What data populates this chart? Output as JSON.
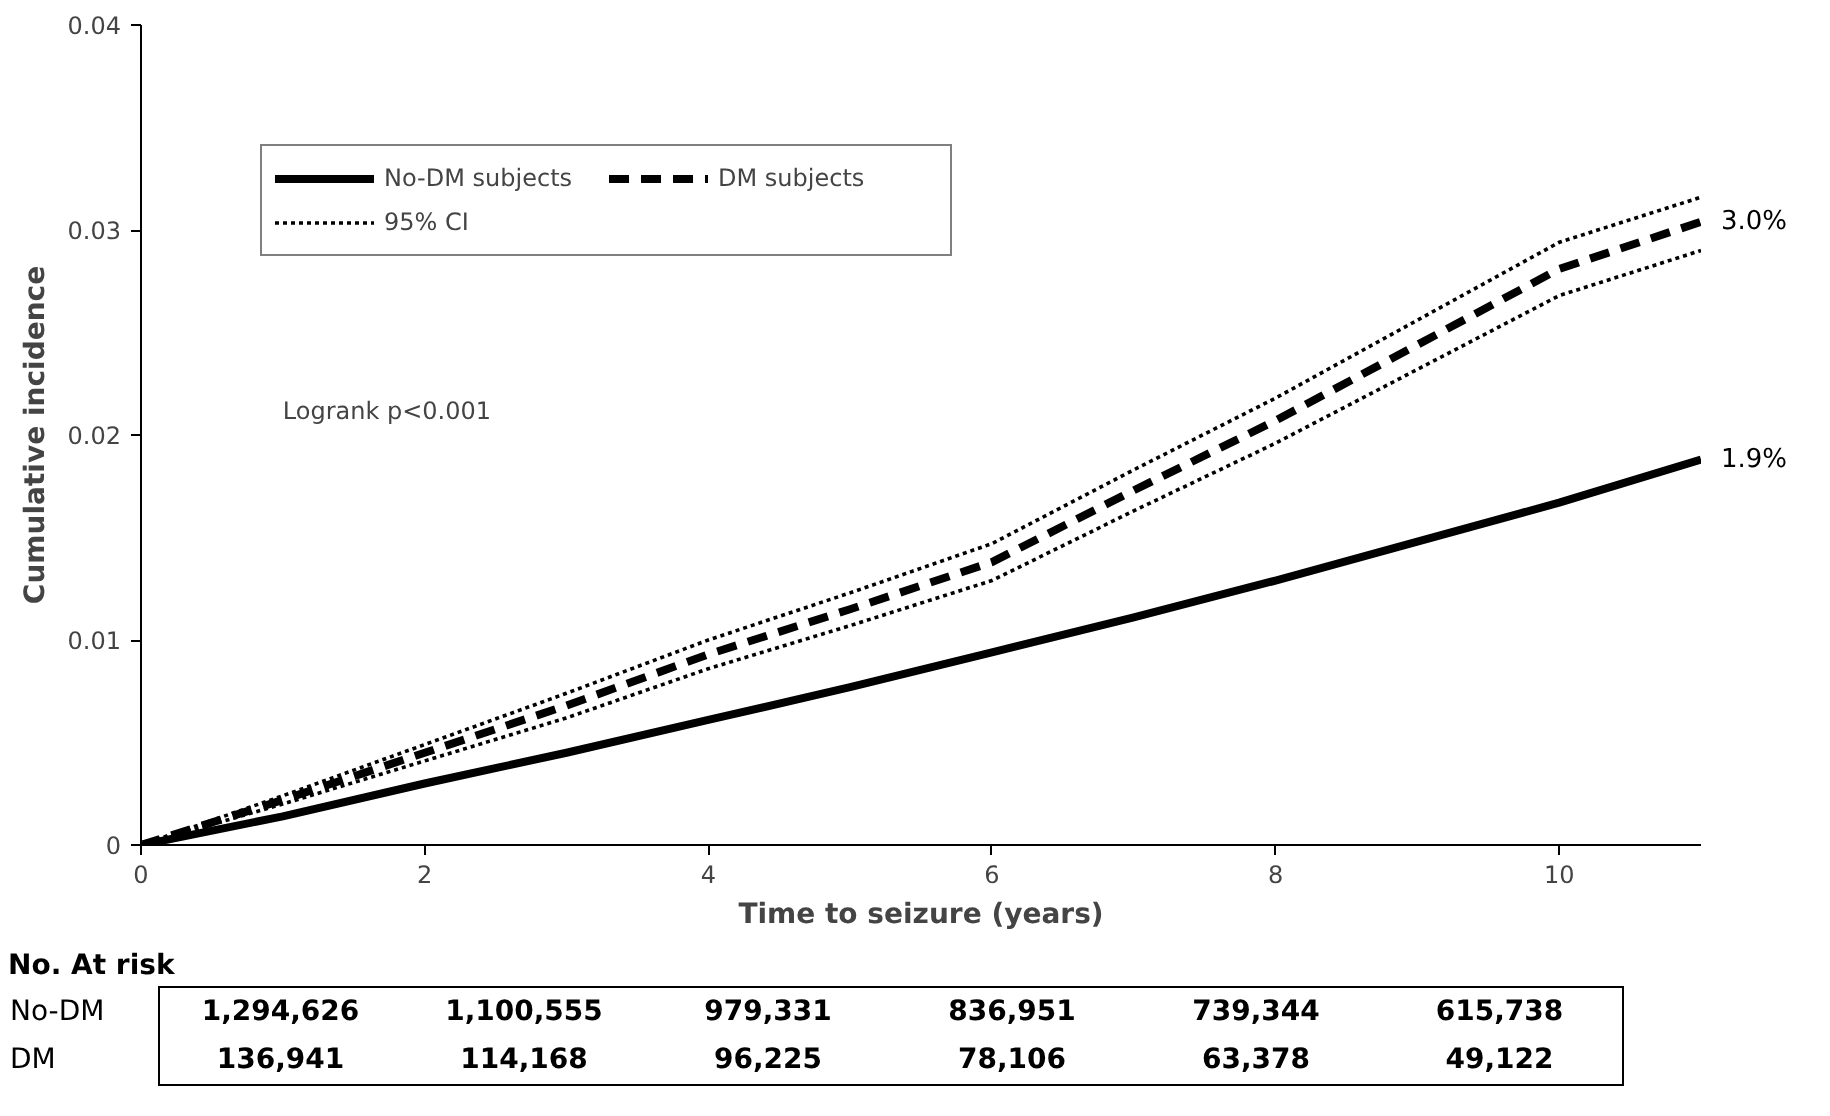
{
  "chart_data": {
    "type": "line",
    "xlabel": "Time to seizure (years)",
    "ylabel": "Cumulative incidence",
    "x": [
      0,
      1,
      2,
      3,
      4,
      5,
      6,
      7,
      8,
      9,
      10,
      11
    ],
    "xlim": [
      0,
      11
    ],
    "xticks": [
      0,
      2,
      4,
      6,
      8,
      10
    ],
    "ylim": [
      0,
      0.04
    ],
    "yticks": [
      0,
      0.01,
      0.02,
      0.03,
      0.04
    ],
    "grid": false,
    "legend": "top left",
    "series": [
      {
        "name": "No-DM subjects",
        "color": "#000000",
        "line_style": "solid",
        "values": [
          0,
          0.0014,
          0.003,
          0.0045,
          0.0061,
          0.0077,
          0.0094,
          0.0111,
          0.0129,
          0.0148,
          0.0167,
          0.0188
        ]
      },
      {
        "name": "DM subjects",
        "color": "#000000",
        "line_style": "dashed",
        "values": [
          0,
          0.0022,
          0.0045,
          0.0068,
          0.0093,
          0.0115,
          0.0138,
          0.0173,
          0.0207,
          0.0244,
          0.0281,
          0.0304
        ]
      },
      {
        "name": "95% CI",
        "color": "#000000",
        "line_style": "dotted",
        "values": [
          0,
          0.0024,
          0.0049,
          0.0074,
          0.01,
          0.0123,
          0.0147,
          0.0183,
          0.0218,
          0.0256,
          0.0294,
          0.0316
        ]
      },
      {
        "color": "#000000",
        "line_style": "dotted",
        "values": [
          0,
          0.002,
          0.0041,
          0.0062,
          0.0086,
          0.0107,
          0.0129,
          0.0163,
          0.0196,
          0.0232,
          0.0268,
          0.029
        ]
      }
    ],
    "annotations": [
      {
        "text": "3.0%",
        "x": 11,
        "y": 0.0304
      },
      {
        "text": "1.9%",
        "x": 11,
        "y": 0.0188
      },
      "Logrank p<0.001",
      "No. At risk",
      "No-DM",
      "1,294,626",
      "1,100,555",
      "979,331",
      "836,951",
      "739,344",
      "615,738",
      "DM",
      "136,941",
      "114,168",
      "96,225",
      "78,106",
      "63,378",
      "49,122"
    ]
  }
}
